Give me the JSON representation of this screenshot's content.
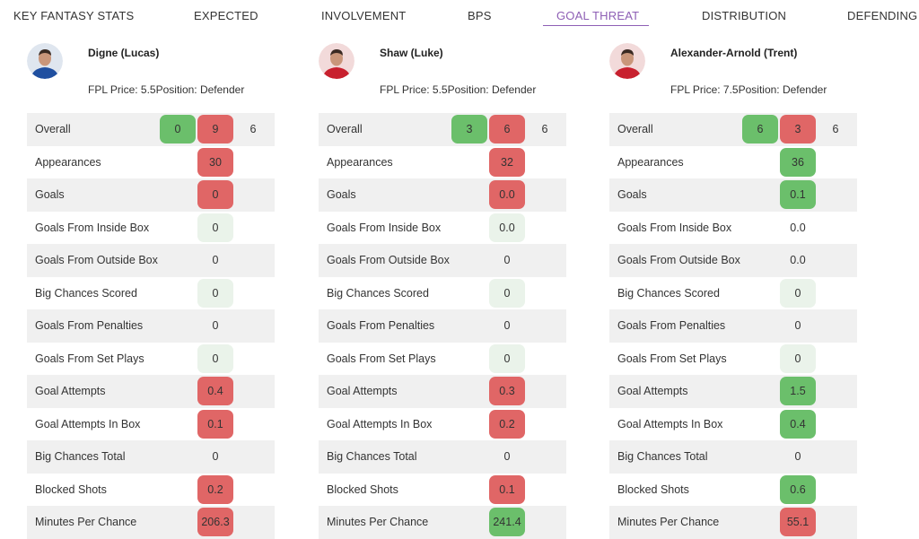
{
  "tabs": [
    {
      "label": "KEY FANTASY STATS",
      "active": false
    },
    {
      "label": "EXPECTED",
      "active": false
    },
    {
      "label": "INVOLVEMENT",
      "active": false
    },
    {
      "label": "BPS",
      "active": false
    },
    {
      "label": "GOAL THREAT",
      "active": true
    },
    {
      "label": "DISTRIBUTION",
      "active": false
    },
    {
      "label": "DEFENDING",
      "active": false
    }
  ],
  "colors": {
    "accent": "#8e5fb5",
    "red": "#e06666",
    "green": "#6bbf6b",
    "light_green": "#eaf3ea",
    "shade": "#f0f0f0"
  },
  "stat_labels": [
    "Overall",
    "Appearances",
    "Goals",
    "Goals From Inside Box",
    "Goals From Outside Box",
    "Big Chances Scored",
    "Goals From Penalties",
    "Goals From Set Plays",
    "Goal Attempts",
    "Goal Attempts In Box",
    "Big Chances Total",
    "Blocked Shots",
    "Minutes Per Chance"
  ],
  "players": [
    {
      "name": "Digne (Lucas)",
      "price_label": "FPL Price: 5.5",
      "position_label": "Position: Defender",
      "avatar": "player-photo-blue-kit",
      "overall": {
        "green": "0",
        "red": "9",
        "plain": "6"
      },
      "stats": [
        {
          "value": "30",
          "color": "red"
        },
        {
          "value": "0",
          "color": "red"
        },
        {
          "value": "0",
          "color": "light"
        },
        {
          "value": "0",
          "color": "none"
        },
        {
          "value": "0",
          "color": "light"
        },
        {
          "value": "0",
          "color": "none"
        },
        {
          "value": "0",
          "color": "light"
        },
        {
          "value": "0.4",
          "color": "red"
        },
        {
          "value": "0.1",
          "color": "red"
        },
        {
          "value": "0",
          "color": "none"
        },
        {
          "value": "0.2",
          "color": "red"
        },
        {
          "value": "206.3",
          "color": "red"
        }
      ]
    },
    {
      "name": "Shaw (Luke)",
      "price_label": "FPL Price: 5.5",
      "position_label": "Position: Defender",
      "avatar": "player-photo-red-kit",
      "overall": {
        "green": "3",
        "red": "6",
        "plain": "6"
      },
      "stats": [
        {
          "value": "32",
          "color": "red"
        },
        {
          "value": "0.0",
          "color": "red"
        },
        {
          "value": "0.0",
          "color": "light"
        },
        {
          "value": "0",
          "color": "none"
        },
        {
          "value": "0",
          "color": "light"
        },
        {
          "value": "0",
          "color": "none"
        },
        {
          "value": "0",
          "color": "light"
        },
        {
          "value": "0.3",
          "color": "red"
        },
        {
          "value": "0.2",
          "color": "red"
        },
        {
          "value": "0",
          "color": "none"
        },
        {
          "value": "0.1",
          "color": "red"
        },
        {
          "value": "241.4",
          "color": "green"
        }
      ]
    },
    {
      "name": "Alexander-Arnold (Trent)",
      "price_label": "FPL Price: 7.5",
      "position_label": "Position: Defender",
      "avatar": "player-photo-red-kit",
      "overall": {
        "green": "6",
        "red": "3",
        "plain": "6"
      },
      "stats": [
        {
          "value": "36",
          "color": "green"
        },
        {
          "value": "0.1",
          "color": "green"
        },
        {
          "value": "0.0",
          "color": "none"
        },
        {
          "value": "0.0",
          "color": "none"
        },
        {
          "value": "0",
          "color": "light"
        },
        {
          "value": "0",
          "color": "none"
        },
        {
          "value": "0",
          "color": "light"
        },
        {
          "value": "1.5",
          "color": "green"
        },
        {
          "value": "0.4",
          "color": "green"
        },
        {
          "value": "0",
          "color": "none"
        },
        {
          "value": "0.6",
          "color": "green"
        },
        {
          "value": "55.1",
          "color": "red"
        }
      ]
    }
  ]
}
